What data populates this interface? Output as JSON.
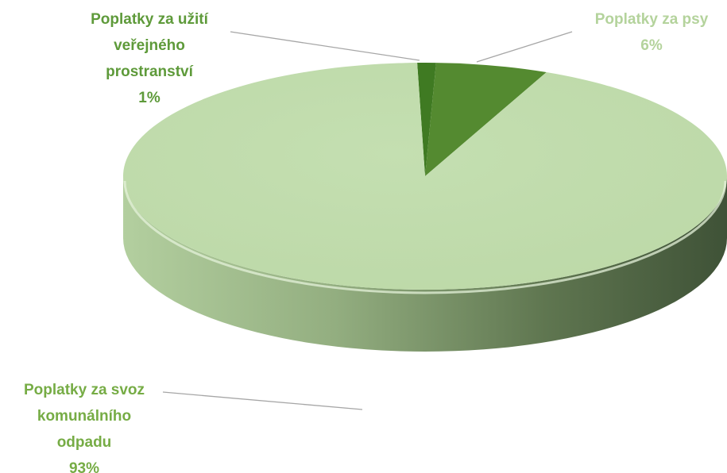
{
  "chart_data": {
    "type": "pie",
    "style": "3d",
    "title": "",
    "slices": [
      {
        "label_lines": [
          "Poplatky za užití",
          "veřejného",
          "prostranství"
        ],
        "percent_label": "1%",
        "value": 1,
        "color": "#3f7a22",
        "label_color": "#5e9a3a"
      },
      {
        "label_lines": [
          "Poplatky za psy"
        ],
        "percent_label": "6%",
        "value": 6,
        "color": "#548a30",
        "label_color": "#b4d39c"
      },
      {
        "label_lines": [
          "Poplatky za svoz",
          "komunálního",
          "odpadu"
        ],
        "percent_label": "93%",
        "value": 93,
        "color": "#c3deb0",
        "label_color": "#76ac45"
      }
    ]
  }
}
